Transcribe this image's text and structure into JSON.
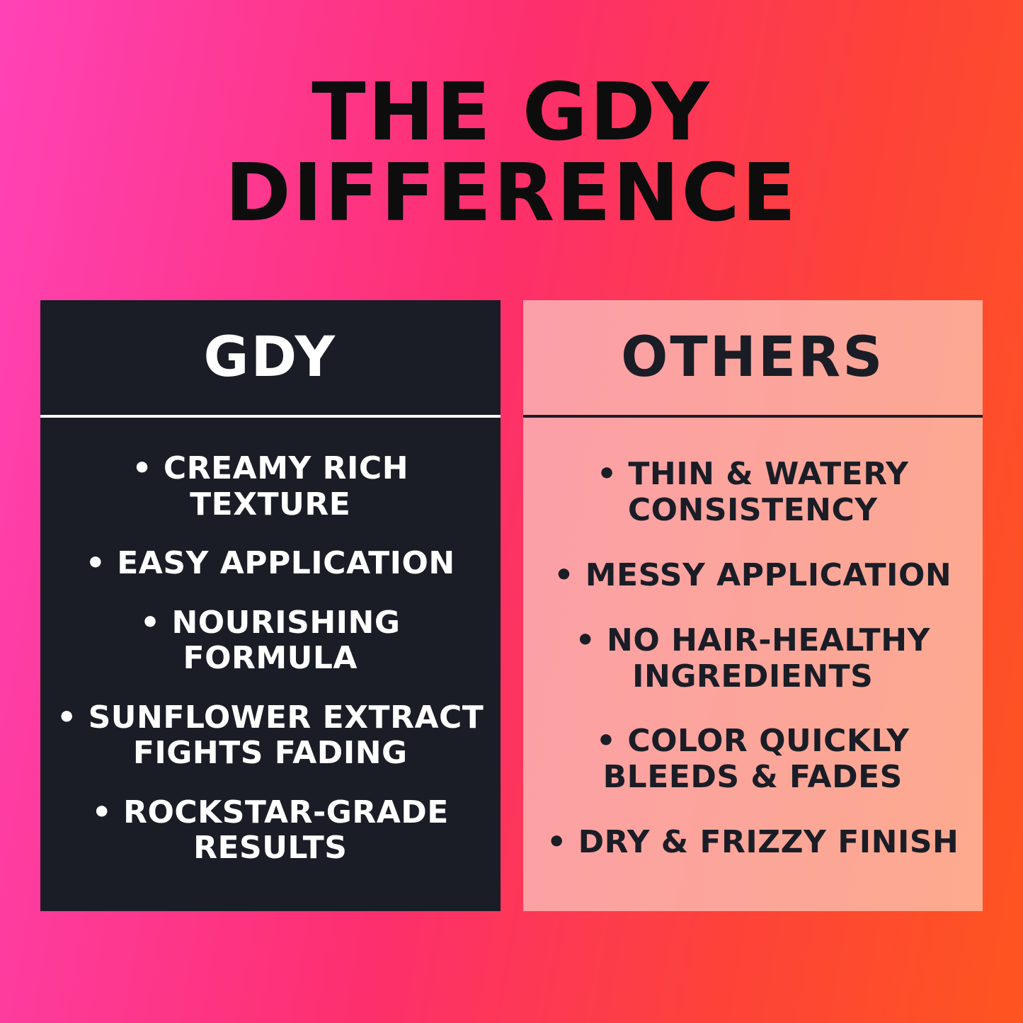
{
  "title": {
    "line1": "THE GDY",
    "line2": "DIFFERENCE"
  },
  "cards": [
    {
      "id": "gdy",
      "title": "GDY",
      "items": [
        [
          "• CREAMY RICH",
          "TEXTURE"
        ],
        [
          "• EASY APPLICATION"
        ],
        [
          "• NOURISHING FORMULA"
        ],
        [
          "• SUNFLOWER EXTRACT",
          "FIGHTS FADING"
        ],
        [
          "• ROCKSTAR-GRADE",
          "RESULTS"
        ]
      ]
    },
    {
      "id": "others",
      "title": "OTHERS",
      "items": [
        [
          "• THIN & WATERY",
          "CONSISTENCY"
        ],
        [
          "• MESSY APPLICATION"
        ],
        [
          "• NO HAIR-HEALTHY",
          "INGREDIENTS"
        ],
        [
          "• COLOR QUICKLY",
          "BLEEDS & FADES"
        ],
        [
          "• DRY & FRIZZY FINISH"
        ]
      ]
    }
  ],
  "colors": {
    "background_gradient": [
      "#ff42b6",
      "#fd2f6d",
      "#fd4338",
      "#ff5520"
    ],
    "title_text": "#0d0d0d",
    "dark_card_background": "#1a1d26",
    "dark_card_text": "#ffffff",
    "dark_card_divider": "#ffffff",
    "light_card_gradient": [
      "#fb9fa9",
      "#fdaa8e"
    ],
    "light_card_text": "#1a1d26",
    "light_card_divider": "#1a1d26"
  }
}
